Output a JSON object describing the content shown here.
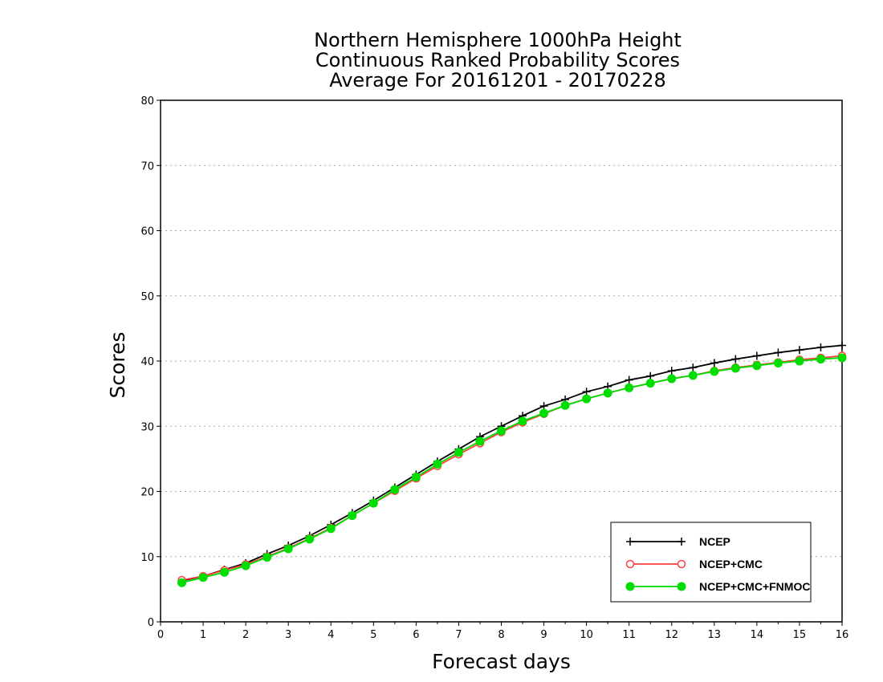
{
  "chart_data": {
    "type": "line",
    "title": [
      "Northern Hemisphere 1000hPa Height",
      "Continuous Ranked Probability Scores",
      "Average For 20161201 - 20170228"
    ],
    "xlabel": "Forecast days",
    "ylabel": "Scores",
    "xlim": [
      0,
      16
    ],
    "ylim": [
      0,
      80
    ],
    "xticks": [
      "0",
      "1",
      "2",
      "3",
      "4",
      "5",
      "6",
      "7",
      "8",
      "9",
      "10",
      "11",
      "12",
      "13",
      "14",
      "15",
      "16"
    ],
    "yticks": [
      "0",
      "10",
      "20",
      "30",
      "40",
      "50",
      "60",
      "70",
      "80"
    ],
    "grid": "horizontal dotted",
    "legend_position": "bottom-right",
    "x": [
      0.5,
      1.0,
      1.5,
      2.0,
      2.5,
      3.0,
      3.5,
      4.0,
      4.5,
      5.0,
      5.5,
      6.0,
      6.5,
      7.0,
      7.5,
      8.0,
      8.5,
      9.0,
      9.5,
      10.0,
      10.5,
      11.0,
      11.5,
      12.0,
      12.5,
      13.0,
      13.5,
      14.0,
      14.5,
      15.0,
      15.5,
      16.0
    ],
    "series": [
      {
        "name": "NCEP",
        "color": "#000000",
        "marker": "plus",
        "values": [
          6.3,
          7.0,
          8.0,
          9.0,
          10.4,
          11.7,
          13.2,
          14.9,
          16.7,
          18.6,
          20.6,
          22.6,
          24.6,
          26.5,
          28.4,
          30.0,
          31.6,
          33.1,
          34.1,
          35.3,
          36.1,
          37.1,
          37.7,
          38.5,
          39.0,
          39.7,
          40.3,
          40.8,
          41.3,
          41.7,
          42.1,
          42.4
        ]
      },
      {
        "name": "NCEP+CMC",
        "color": "#ff4040",
        "marker": "open-circle",
        "values": [
          6.4,
          7.0,
          7.9,
          8.8,
          10.0,
          11.3,
          12.8,
          14.4,
          16.3,
          18.2,
          20.1,
          22.0,
          23.9,
          25.7,
          27.4,
          29.1,
          30.6,
          31.9,
          33.2,
          34.2,
          35.1,
          35.9,
          36.6,
          37.3,
          37.8,
          38.5,
          39.0,
          39.4,
          39.8,
          40.2,
          40.5,
          40.8
        ]
      },
      {
        "name": "NCEP+CMC+FNMOC",
        "color": "#00dd00",
        "marker": "filled-circle",
        "values": [
          6.0,
          6.8,
          7.6,
          8.6,
          9.9,
          11.2,
          12.7,
          14.3,
          16.3,
          18.2,
          20.3,
          22.2,
          24.2,
          26.0,
          27.7,
          29.3,
          30.8,
          32.0,
          33.2,
          34.2,
          35.1,
          35.9,
          36.6,
          37.3,
          37.8,
          38.4,
          38.9,
          39.3,
          39.7,
          40.0,
          40.3,
          40.5
        ]
      }
    ]
  }
}
